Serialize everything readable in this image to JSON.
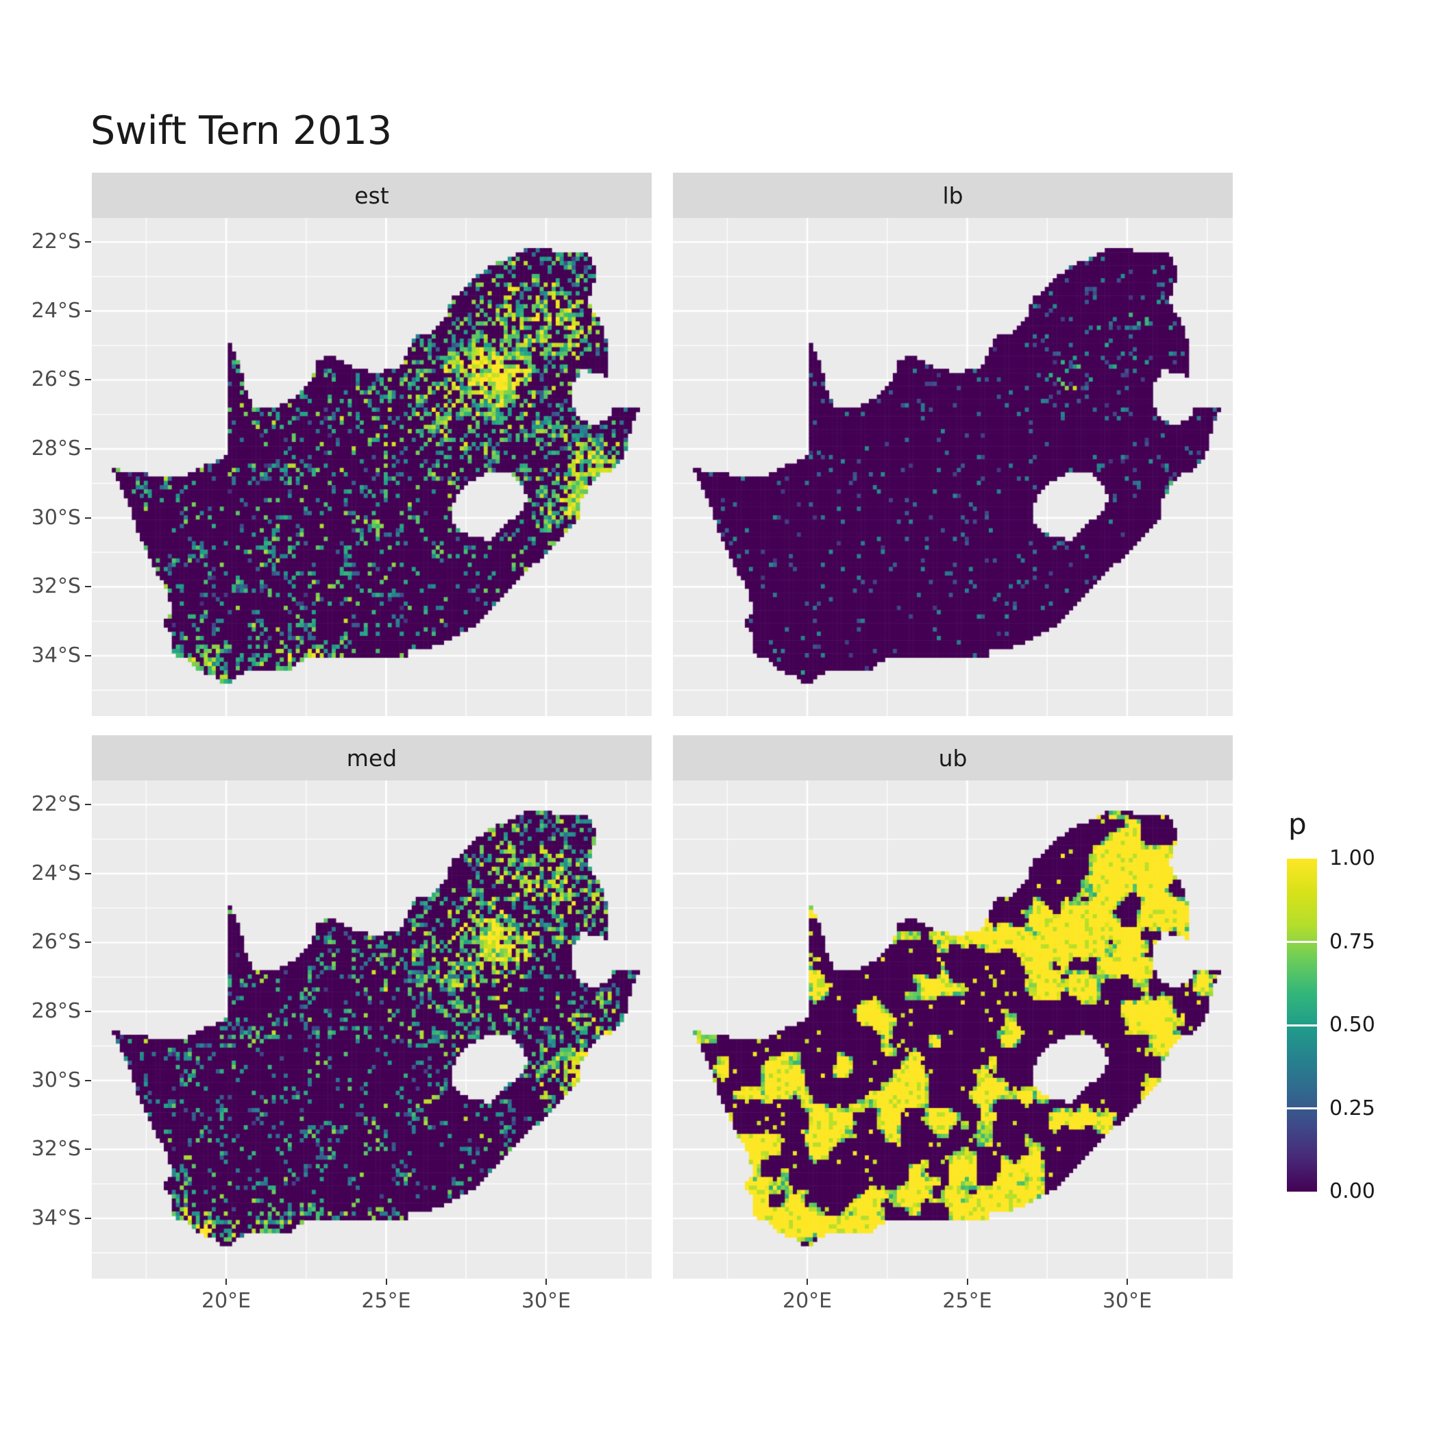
{
  "chart_data": {
    "type": "heatmap",
    "title": "Swift Tern 2013",
    "region": "South Africa (Lesotho shown as hole, Eswatini excluded)",
    "facets": [
      {
        "label": "est",
        "row": 0,
        "col": 0,
        "summary": "Estimated reporting probability: mostly near 0 (dark purple) with widespread teal-green speckle; strong yellow hotspot over Gauteng (~28E,26S), elevated values along KwaZulu-Natal coast and southwest Cape.",
        "render": {
          "mode": "speckle",
          "seed": 11,
          "bg": 0.1,
          "h_gain": 0.85,
          "n_gain": 0.5,
          "noise_scale": 4.5,
          "hotspots": [
            [
              28.35,
              -25.95,
              1.35,
              1.1,
              1.0
            ],
            [
              29.9,
              -24.3,
              2.2,
              1.5,
              0.55
            ],
            [
              31.1,
              -29.6,
              1.1,
              1.2,
              0.8
            ],
            [
              31.45,
              -28.4,
              0.9,
              0.8,
              0.65
            ],
            [
              19.0,
              -34.35,
              0.95,
              0.6,
              0.85
            ],
            [
              22.5,
              -34.1,
              1.6,
              0.5,
              0.5
            ],
            [
              27.3,
              -26.7,
              2.5,
              2.0,
              0.35
            ]
          ]
        }
      },
      {
        "label": "lb",
        "row": 0,
        "col": 1,
        "summary": "Lower bound: almost entirely near 0 (dark purple) with very sparse faint teal speckle; tiny bright spot at Gauteng.",
        "render": {
          "mode": "sparse",
          "seed": 23,
          "bg": 0.045,
          "h_gain": 0.3,
          "n_gain": 0.25,
          "noise_scale": 5,
          "hotspots": [
            [
              28.2,
              -26.0,
              0.55,
              0.5,
              1.0
            ],
            [
              30.3,
              -24.6,
              1.8,
              1.4,
              0.3
            ],
            [
              31.2,
              -28.9,
              0.9,
              1.1,
              0.35
            ],
            [
              19.2,
              -34.4,
              0.8,
              0.5,
              0.3
            ]
          ]
        }
      },
      {
        "label": "med",
        "row": 1,
        "col": 0,
        "summary": "Median: pattern similar to est; dark background with teal-green speckle and yellow Gauteng hotspot, elevated east coast and south coast.",
        "render": {
          "mode": "speckle",
          "seed": 37,
          "bg": 0.085,
          "h_gain": 0.8,
          "n_gain": 0.45,
          "noise_scale": 4.5,
          "hotspots": [
            [
              28.35,
              -25.95,
              1.35,
              1.1,
              0.95
            ],
            [
              29.9,
              -24.3,
              2.2,
              1.5,
              0.5
            ],
            [
              31.1,
              -29.6,
              1.1,
              1.2,
              0.75
            ],
            [
              31.45,
              -28.4,
              0.9,
              0.8,
              0.6
            ],
            [
              19.0,
              -34.35,
              0.95,
              0.6,
              0.8
            ],
            [
              22.5,
              -34.1,
              1.6,
              0.5,
              0.45
            ],
            [
              27.3,
              -26.7,
              2.5,
              2.0,
              0.3
            ]
          ]
        }
      },
      {
        "label": "ub",
        "row": 1,
        "col": 1,
        "summary": "Upper bound: large saturated yellow (p=1) patches over Gauteng/northeast, KwaZulu-Natal coast, south and southwest coasts, plus scattered yellow clusters elsewhere on dark purple background.",
        "render": {
          "mode": "binary",
          "seed": 53,
          "bg": 0.03,
          "h_gain": 0.5,
          "n_gain": 0.75,
          "thresh": 0.73,
          "noise_scale": 6,
          "hotspots": [
            [
              28.4,
              -25.9,
              1.9,
              1.5,
              1.0
            ],
            [
              30.9,
              -24.2,
              1.9,
              1.8,
              0.7
            ],
            [
              31.2,
              -29.4,
              1.2,
              1.6,
              0.75
            ],
            [
              20.3,
              -34.3,
              2.4,
              0.8,
              0.8
            ],
            [
              18.6,
              -33.2,
              1.0,
              1.4,
              0.65
            ],
            [
              25.5,
              -33.9,
              2.5,
              0.8,
              0.45
            ],
            [
              23.0,
              -31.5,
              4.0,
              2.2,
              0.2
            ]
          ]
        }
      }
    ],
    "x": {
      "ticks": [
        20,
        25,
        30
      ],
      "labels": [
        "20°E",
        "25°E",
        "30°E"
      ],
      "minor": [
        17.5,
        22.5,
        27.5,
        32.5
      ],
      "range": [
        15.8,
        33.3
      ]
    },
    "y": {
      "ticks": [
        -22,
        -24,
        -26,
        -28,
        -30,
        -32,
        -34
      ],
      "labels": [
        "22°S",
        "24°S",
        "26°S",
        "28°S",
        "30°S",
        "32°S",
        "34°S"
      ],
      "minor": [
        -23,
        -25,
        -27,
        -29,
        -31,
        -33,
        -35
      ],
      "range": [
        -35.75,
        -21.3
      ]
    },
    "legend": {
      "title": "p",
      "tick_labels": [
        "1.00",
        "0.75",
        "0.50",
        "0.25",
        "0.00"
      ],
      "tick_values": [
        1.0,
        0.75,
        0.5,
        0.25,
        0.0
      ],
      "limits": [
        0.0,
        1.0
      ],
      "position": "right"
    },
    "colormap": {
      "name": "viridis",
      "stops": [
        [
          0.0,
          "#440154"
        ],
        [
          0.1,
          "#482878"
        ],
        [
          0.2,
          "#3E4A89"
        ],
        [
          0.3,
          "#31688E"
        ],
        [
          0.4,
          "#26828E"
        ],
        [
          0.5,
          "#1F9E89"
        ],
        [
          0.6,
          "#35B779"
        ],
        [
          0.7,
          "#6DCD59"
        ],
        [
          0.8,
          "#B4DE2C"
        ],
        [
          0.9,
          "#D8E219"
        ],
        [
          1.0,
          "#FDE725"
        ]
      ]
    },
    "layout": {
      "panel_bg": "#EBEBEB",
      "strip_bg": "#D9D9D9",
      "grid_color": "#FFFFFF",
      "axis_text_color": "#4D4D4D",
      "title_color": "#1A1A1A",
      "background": "#FFFFFF",
      "grid": "on"
    },
    "projection": {
      "lon_min": 15.8,
      "lon_max": 33.3,
      "lat_top": -21.3,
      "lat_bottom": -35.75
    },
    "cell_deg": 0.125,
    "outline": [
      [
        16.45,
        -28.58
      ],
      [
        16.75,
        -29.2
      ],
      [
        17.05,
        -29.85
      ],
      [
        17.25,
        -30.4
      ],
      [
        17.55,
        -31.0
      ],
      [
        17.85,
        -31.6
      ],
      [
        18.2,
        -32.2
      ],
      [
        18.3,
        -32.75
      ],
      [
        18.0,
        -33.0
      ],
      [
        18.3,
        -33.3
      ],
      [
        18.35,
        -33.85
      ],
      [
        18.45,
        -34.1
      ],
      [
        18.8,
        -34.05
      ],
      [
        19.0,
        -34.35
      ],
      [
        19.6,
        -34.6
      ],
      [
        20.0,
        -34.82
      ],
      [
        20.55,
        -34.45
      ],
      [
        21.2,
        -34.4
      ],
      [
        21.9,
        -34.45
      ],
      [
        22.5,
        -34.05
      ],
      [
        23.4,
        -34.1
      ],
      [
        24.2,
        -34.05
      ],
      [
        25.0,
        -34.0
      ],
      [
        25.65,
        -34.05
      ],
      [
        25.75,
        -33.75
      ],
      [
        26.45,
        -33.75
      ],
      [
        27.05,
        -33.5
      ],
      [
        27.9,
        -33.05
      ],
      [
        28.6,
        -32.3
      ],
      [
        29.35,
        -31.55
      ],
      [
        30.05,
        -31.05
      ],
      [
        30.7,
        -30.4
      ],
      [
        31.05,
        -29.9
      ],
      [
        31.1,
        -29.5
      ],
      [
        31.35,
        -29.1
      ],
      [
        31.75,
        -28.7
      ],
      [
        32.05,
        -28.6
      ],
      [
        32.35,
        -28.3
      ],
      [
        32.55,
        -27.95
      ],
      [
        32.65,
        -27.4
      ],
      [
        32.88,
        -26.86
      ],
      [
        32.12,
        -26.84
      ],
      [
        31.97,
        -27.1
      ],
      [
        31.55,
        -27.3
      ],
      [
        31.1,
        -27.2
      ],
      [
        30.95,
        -26.95
      ],
      [
        30.8,
        -26.6
      ],
      [
        30.8,
        -26.15
      ],
      [
        30.95,
        -25.95
      ],
      [
        31.1,
        -25.73
      ],
      [
        31.6,
        -25.75
      ],
      [
        31.97,
        -25.95
      ],
      [
        31.95,
        -25.3
      ],
      [
        31.85,
        -24.7
      ],
      [
        31.55,
        -24.1
      ],
      [
        31.3,
        -23.65
      ],
      [
        31.5,
        -23.2
      ],
      [
        31.55,
        -22.8
      ],
      [
        31.3,
        -22.35
      ],
      [
        30.45,
        -22.3
      ],
      [
        29.65,
        -22.15
      ],
      [
        29.35,
        -22.2
      ],
      [
        28.95,
        -22.45
      ],
      [
        28.2,
        -22.7
      ],
      [
        27.6,
        -23.2
      ],
      [
        27.05,
        -23.65
      ],
      [
        26.85,
        -24.25
      ],
      [
        26.4,
        -24.63
      ],
      [
        25.85,
        -24.75
      ],
      [
        25.5,
        -25.6
      ],
      [
        24.75,
        -25.8
      ],
      [
        24.0,
        -25.65
      ],
      [
        23.25,
        -25.3
      ],
      [
        22.85,
        -25.45
      ],
      [
        22.6,
        -26.1
      ],
      [
        22.0,
        -26.6
      ],
      [
        21.4,
        -26.85
      ],
      [
        20.85,
        -26.8
      ],
      [
        20.65,
        -26.4
      ],
      [
        20.4,
        -25.5
      ],
      [
        20.0,
        -24.77
      ],
      [
        20.0,
        -28.2
      ],
      [
        19.3,
        -28.5
      ],
      [
        18.5,
        -28.85
      ],
      [
        17.6,
        -28.75
      ]
    ],
    "hole": [
      [
        27.0,
        -29.65
      ],
      [
        27.4,
        -29.1
      ],
      [
        27.75,
        -28.9
      ],
      [
        28.3,
        -28.65
      ],
      [
        28.85,
        -28.65
      ],
      [
        29.25,
        -29.1
      ],
      [
        29.45,
        -29.35
      ],
      [
        29.3,
        -29.8
      ],
      [
        28.8,
        -30.15
      ],
      [
        28.25,
        -30.65
      ],
      [
        27.75,
        -30.55
      ],
      [
        27.4,
        -30.4
      ],
      [
        27.05,
        -30.1
      ]
    ]
  }
}
